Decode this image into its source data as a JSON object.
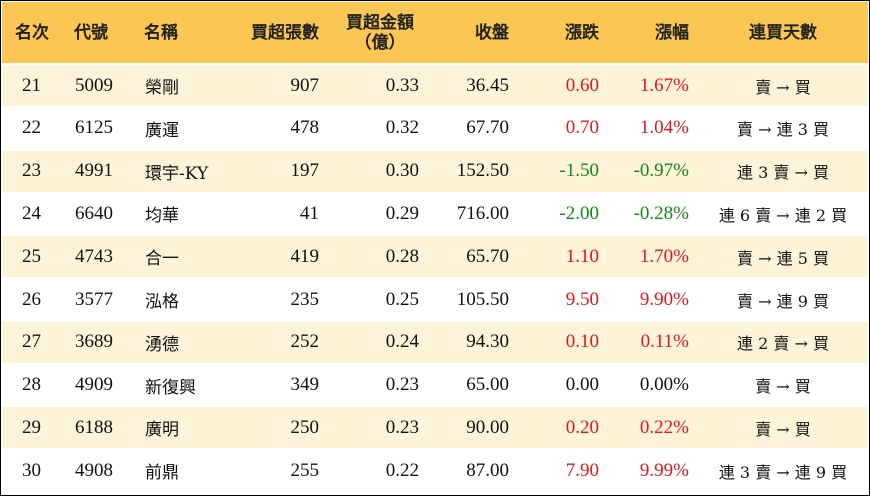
{
  "header": {
    "rank": "名次",
    "code": "代號",
    "name": "名稱",
    "net_lots": "買超張數",
    "net_amount_line1": "買超金額",
    "net_amount_line2": "（億）",
    "close": "收盤",
    "change": "漲跌",
    "pct": "漲幅",
    "streak": "連買天數"
  },
  "colors": {
    "header_bg": "#fbc653",
    "stripe_bg": "#fdf3d9",
    "up": "#e0161d",
    "down": "#128a12"
  },
  "rows": [
    {
      "rank": "21",
      "code": "5009",
      "name": "榮剛",
      "lots": "907",
      "amount": "0.33",
      "close": "36.45",
      "change": "0.60",
      "pct": "1.67%",
      "streak": "賣 → 買",
      "dir": "up"
    },
    {
      "rank": "22",
      "code": "6125",
      "name": "廣運",
      "lots": "478",
      "amount": "0.32",
      "close": "67.70",
      "change": "0.70",
      "pct": "1.04%",
      "streak": "賣 → 連 3 買",
      "dir": "up"
    },
    {
      "rank": "23",
      "code": "4991",
      "name": "環宇-KY",
      "lots": "197",
      "amount": "0.30",
      "close": "152.50",
      "change": "-1.50",
      "pct": "-0.97%",
      "streak": "連 3 賣 → 買",
      "dir": "down"
    },
    {
      "rank": "24",
      "code": "6640",
      "name": "均華",
      "lots": "41",
      "amount": "0.29",
      "close": "716.00",
      "change": "-2.00",
      "pct": "-0.28%",
      "streak": "連 6 賣 → 連 2 買",
      "dir": "down"
    },
    {
      "rank": "25",
      "code": "4743",
      "name": "合一",
      "lots": "419",
      "amount": "0.28",
      "close": "65.70",
      "change": "1.10",
      "pct": "1.70%",
      "streak": "賣 → 連 5 買",
      "dir": "up"
    },
    {
      "rank": "26",
      "code": "3577",
      "name": "泓格",
      "lots": "235",
      "amount": "0.25",
      "close": "105.50",
      "change": "9.50",
      "pct": "9.90%",
      "streak": "賣 → 連 9 買",
      "dir": "up"
    },
    {
      "rank": "27",
      "code": "3689",
      "name": "湧德",
      "lots": "252",
      "amount": "0.24",
      "close": "94.30",
      "change": "0.10",
      "pct": "0.11%",
      "streak": "連 2 賣 → 買",
      "dir": "up"
    },
    {
      "rank": "28",
      "code": "4909",
      "name": "新復興",
      "lots": "349",
      "amount": "0.23",
      "close": "65.00",
      "change": "0.00",
      "pct": "0.00%",
      "streak": "賣 → 買",
      "dir": "flat"
    },
    {
      "rank": "29",
      "code": "6188",
      "name": "廣明",
      "lots": "250",
      "amount": "0.23",
      "close": "90.00",
      "change": "0.20",
      "pct": "0.22%",
      "streak": "賣 → 買",
      "dir": "up"
    },
    {
      "rank": "30",
      "code": "4908",
      "name": "前鼎",
      "lots": "255",
      "amount": "0.22",
      "close": "87.00",
      "change": "7.90",
      "pct": "9.99%",
      "streak": "連 3 賣 → 連 9 買",
      "dir": "up"
    }
  ]
}
